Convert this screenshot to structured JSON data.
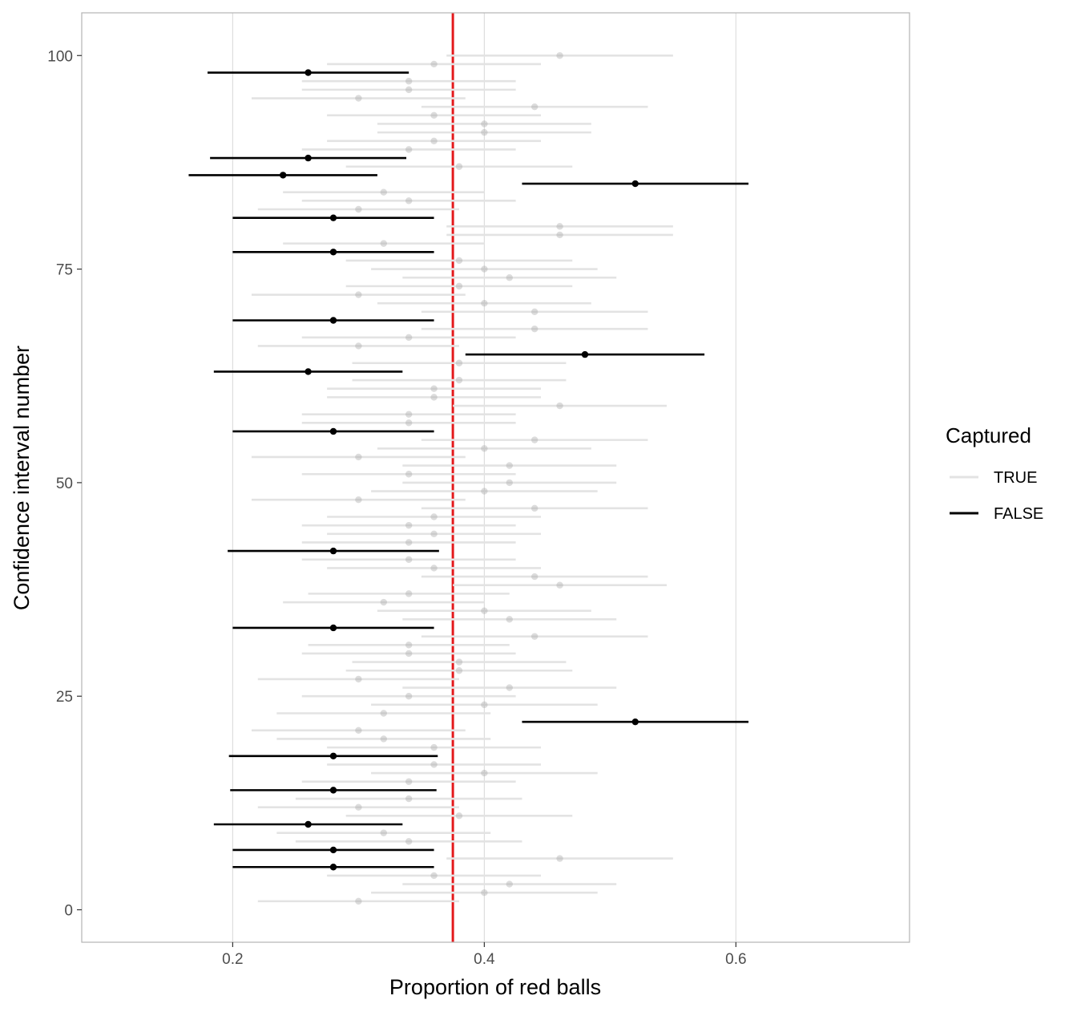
{
  "chart_data": {
    "type": "scatter",
    "xlabel": "Proportion of red balls",
    "ylabel": "Confidence interval number",
    "xlim": [
      0.08,
      0.738
    ],
    "ylim": [
      -3.8,
      105
    ],
    "x_ticks": [
      {
        "value": 0.2,
        "label": "0.2"
      },
      {
        "value": 0.4,
        "label": "0.4"
      },
      {
        "value": 0.6,
        "label": "0.6"
      }
    ],
    "y_ticks": [
      {
        "value": 0,
        "label": "0"
      },
      {
        "value": 25,
        "label": "25"
      },
      {
        "value": 50,
        "label": "50"
      },
      {
        "value": 75,
        "label": "75"
      },
      {
        "value": 100,
        "label": "100"
      }
    ],
    "grid": true,
    "reference_line": {
      "x": 0.375,
      "color": "#e41a1c"
    },
    "legend": {
      "title": "Captured",
      "position": "right",
      "entries": [
        {
          "label": "TRUE",
          "color": "#e3e3e3"
        },
        {
          "label": "FALSE",
          "color": "#000000"
        }
      ]
    },
    "colors": {
      "captured": "#e3e3e3",
      "missed": "#000000",
      "reference": "#e41a1c"
    },
    "intervals": [
      {
        "id": 1,
        "estimate": 0.3,
        "lower": 0.22,
        "upper": 0.38,
        "captured": true
      },
      {
        "id": 2,
        "estimate": 0.4,
        "lower": 0.31,
        "upper": 0.49,
        "captured": true
      },
      {
        "id": 3,
        "estimate": 0.42,
        "lower": 0.335,
        "upper": 0.505,
        "captured": true
      },
      {
        "id": 4,
        "estimate": 0.36,
        "lower": 0.275,
        "upper": 0.445,
        "captured": true
      },
      {
        "id": 5,
        "estimate": 0.28,
        "lower": 0.2,
        "upper": 0.36,
        "captured": false
      },
      {
        "id": 6,
        "estimate": 0.46,
        "lower": 0.37,
        "upper": 0.55,
        "captured": true
      },
      {
        "id": 7,
        "estimate": 0.28,
        "lower": 0.2,
        "upper": 0.36,
        "captured": false
      },
      {
        "id": 8,
        "estimate": 0.34,
        "lower": 0.25,
        "upper": 0.43,
        "captured": true
      },
      {
        "id": 9,
        "estimate": 0.32,
        "lower": 0.235,
        "upper": 0.405,
        "captured": true
      },
      {
        "id": 10,
        "estimate": 0.26,
        "lower": 0.185,
        "upper": 0.335,
        "captured": false
      },
      {
        "id": 11,
        "estimate": 0.38,
        "lower": 0.29,
        "upper": 0.47,
        "captured": true
      },
      {
        "id": 12,
        "estimate": 0.3,
        "lower": 0.22,
        "upper": 0.38,
        "captured": true
      },
      {
        "id": 13,
        "estimate": 0.34,
        "lower": 0.25,
        "upper": 0.43,
        "captured": true
      },
      {
        "id": 14,
        "estimate": 0.28,
        "lower": 0.198,
        "upper": 0.362,
        "captured": false
      },
      {
        "id": 15,
        "estimate": 0.34,
        "lower": 0.255,
        "upper": 0.425,
        "captured": true
      },
      {
        "id": 16,
        "estimate": 0.4,
        "lower": 0.31,
        "upper": 0.49,
        "captured": true
      },
      {
        "id": 17,
        "estimate": 0.36,
        "lower": 0.275,
        "upper": 0.445,
        "captured": true
      },
      {
        "id": 18,
        "estimate": 0.28,
        "lower": 0.197,
        "upper": 0.363,
        "captured": false
      },
      {
        "id": 19,
        "estimate": 0.36,
        "lower": 0.275,
        "upper": 0.445,
        "captured": true
      },
      {
        "id": 20,
        "estimate": 0.32,
        "lower": 0.235,
        "upper": 0.405,
        "captured": true
      },
      {
        "id": 21,
        "estimate": 0.3,
        "lower": 0.215,
        "upper": 0.385,
        "captured": true
      },
      {
        "id": 22,
        "estimate": 0.52,
        "lower": 0.43,
        "upper": 0.61,
        "captured": false
      },
      {
        "id": 23,
        "estimate": 0.32,
        "lower": 0.235,
        "upper": 0.405,
        "captured": true
      },
      {
        "id": 24,
        "estimate": 0.4,
        "lower": 0.31,
        "upper": 0.49,
        "captured": true
      },
      {
        "id": 25,
        "estimate": 0.34,
        "lower": 0.255,
        "upper": 0.425,
        "captured": true
      },
      {
        "id": 26,
        "estimate": 0.42,
        "lower": 0.335,
        "upper": 0.505,
        "captured": true
      },
      {
        "id": 27,
        "estimate": 0.3,
        "lower": 0.22,
        "upper": 0.38,
        "captured": true
      },
      {
        "id": 28,
        "estimate": 0.38,
        "lower": 0.29,
        "upper": 0.47,
        "captured": true
      },
      {
        "id": 29,
        "estimate": 0.38,
        "lower": 0.295,
        "upper": 0.465,
        "captured": true
      },
      {
        "id": 30,
        "estimate": 0.34,
        "lower": 0.255,
        "upper": 0.425,
        "captured": true
      },
      {
        "id": 31,
        "estimate": 0.34,
        "lower": 0.26,
        "upper": 0.42,
        "captured": true
      },
      {
        "id": 32,
        "estimate": 0.44,
        "lower": 0.35,
        "upper": 0.53,
        "captured": true
      },
      {
        "id": 33,
        "estimate": 0.28,
        "lower": 0.2,
        "upper": 0.36,
        "captured": false
      },
      {
        "id": 34,
        "estimate": 0.42,
        "lower": 0.335,
        "upper": 0.505,
        "captured": true
      },
      {
        "id": 35,
        "estimate": 0.4,
        "lower": 0.315,
        "upper": 0.485,
        "captured": true
      },
      {
        "id": 36,
        "estimate": 0.32,
        "lower": 0.24,
        "upper": 0.4,
        "captured": true
      },
      {
        "id": 37,
        "estimate": 0.34,
        "lower": 0.26,
        "upper": 0.42,
        "captured": true
      },
      {
        "id": 38,
        "estimate": 0.46,
        "lower": 0.375,
        "upper": 0.545,
        "captured": true
      },
      {
        "id": 39,
        "estimate": 0.44,
        "lower": 0.35,
        "upper": 0.53,
        "captured": true
      },
      {
        "id": 40,
        "estimate": 0.36,
        "lower": 0.275,
        "upper": 0.445,
        "captured": true
      },
      {
        "id": 41,
        "estimate": 0.34,
        "lower": 0.255,
        "upper": 0.425,
        "captured": true
      },
      {
        "id": 42,
        "estimate": 0.28,
        "lower": 0.196,
        "upper": 0.364,
        "captured": false
      },
      {
        "id": 43,
        "estimate": 0.34,
        "lower": 0.255,
        "upper": 0.425,
        "captured": true
      },
      {
        "id": 44,
        "estimate": 0.36,
        "lower": 0.275,
        "upper": 0.445,
        "captured": true
      },
      {
        "id": 45,
        "estimate": 0.34,
        "lower": 0.255,
        "upper": 0.425,
        "captured": true
      },
      {
        "id": 46,
        "estimate": 0.36,
        "lower": 0.275,
        "upper": 0.445,
        "captured": true
      },
      {
        "id": 47,
        "estimate": 0.44,
        "lower": 0.35,
        "upper": 0.53,
        "captured": true
      },
      {
        "id": 48,
        "estimate": 0.3,
        "lower": 0.215,
        "upper": 0.385,
        "captured": true
      },
      {
        "id": 49,
        "estimate": 0.4,
        "lower": 0.31,
        "upper": 0.49,
        "captured": true
      },
      {
        "id": 50,
        "estimate": 0.42,
        "lower": 0.335,
        "upper": 0.505,
        "captured": true
      },
      {
        "id": 51,
        "estimate": 0.34,
        "lower": 0.255,
        "upper": 0.425,
        "captured": true
      },
      {
        "id": 52,
        "estimate": 0.42,
        "lower": 0.335,
        "upper": 0.505,
        "captured": true
      },
      {
        "id": 53,
        "estimate": 0.3,
        "lower": 0.215,
        "upper": 0.385,
        "captured": true
      },
      {
        "id": 54,
        "estimate": 0.4,
        "lower": 0.315,
        "upper": 0.485,
        "captured": true
      },
      {
        "id": 55,
        "estimate": 0.44,
        "lower": 0.35,
        "upper": 0.53,
        "captured": true
      },
      {
        "id": 56,
        "estimate": 0.28,
        "lower": 0.2,
        "upper": 0.36,
        "captured": false
      },
      {
        "id": 57,
        "estimate": 0.34,
        "lower": 0.255,
        "upper": 0.425,
        "captured": true
      },
      {
        "id": 58,
        "estimate": 0.34,
        "lower": 0.255,
        "upper": 0.425,
        "captured": true
      },
      {
        "id": 59,
        "estimate": 0.46,
        "lower": 0.375,
        "upper": 0.545,
        "captured": true
      },
      {
        "id": 60,
        "estimate": 0.36,
        "lower": 0.275,
        "upper": 0.445,
        "captured": true
      },
      {
        "id": 61,
        "estimate": 0.36,
        "lower": 0.275,
        "upper": 0.445,
        "captured": true
      },
      {
        "id": 62,
        "estimate": 0.38,
        "lower": 0.295,
        "upper": 0.465,
        "captured": true
      },
      {
        "id": 63,
        "estimate": 0.26,
        "lower": 0.185,
        "upper": 0.335,
        "captured": false
      },
      {
        "id": 64,
        "estimate": 0.38,
        "lower": 0.295,
        "upper": 0.465,
        "captured": true
      },
      {
        "id": 65,
        "estimate": 0.48,
        "lower": 0.385,
        "upper": 0.575,
        "captured": false
      },
      {
        "id": 66,
        "estimate": 0.3,
        "lower": 0.22,
        "upper": 0.38,
        "captured": true
      },
      {
        "id": 67,
        "estimate": 0.34,
        "lower": 0.255,
        "upper": 0.425,
        "captured": true
      },
      {
        "id": 68,
        "estimate": 0.44,
        "lower": 0.35,
        "upper": 0.53,
        "captured": true
      },
      {
        "id": 69,
        "estimate": 0.28,
        "lower": 0.2,
        "upper": 0.36,
        "captured": false
      },
      {
        "id": 70,
        "estimate": 0.44,
        "lower": 0.35,
        "upper": 0.53,
        "captured": true
      },
      {
        "id": 71,
        "estimate": 0.4,
        "lower": 0.315,
        "upper": 0.485,
        "captured": true
      },
      {
        "id": 72,
        "estimate": 0.3,
        "lower": 0.215,
        "upper": 0.385,
        "captured": true
      },
      {
        "id": 73,
        "estimate": 0.38,
        "lower": 0.29,
        "upper": 0.47,
        "captured": true
      },
      {
        "id": 74,
        "estimate": 0.42,
        "lower": 0.335,
        "upper": 0.505,
        "captured": true
      },
      {
        "id": 75,
        "estimate": 0.4,
        "lower": 0.31,
        "upper": 0.49,
        "captured": true
      },
      {
        "id": 76,
        "estimate": 0.38,
        "lower": 0.29,
        "upper": 0.47,
        "captured": true
      },
      {
        "id": 77,
        "estimate": 0.28,
        "lower": 0.2,
        "upper": 0.36,
        "captured": false
      },
      {
        "id": 78,
        "estimate": 0.32,
        "lower": 0.24,
        "upper": 0.4,
        "captured": true
      },
      {
        "id": 79,
        "estimate": 0.46,
        "lower": 0.37,
        "upper": 0.55,
        "captured": true
      },
      {
        "id": 80,
        "estimate": 0.46,
        "lower": 0.37,
        "upper": 0.55,
        "captured": true
      },
      {
        "id": 81,
        "estimate": 0.28,
        "lower": 0.2,
        "upper": 0.36,
        "captured": false
      },
      {
        "id": 82,
        "estimate": 0.3,
        "lower": 0.22,
        "upper": 0.38,
        "captured": true
      },
      {
        "id": 83,
        "estimate": 0.34,
        "lower": 0.255,
        "upper": 0.425,
        "captured": true
      },
      {
        "id": 84,
        "estimate": 0.32,
        "lower": 0.24,
        "upper": 0.4,
        "captured": true
      },
      {
        "id": 85,
        "estimate": 0.52,
        "lower": 0.43,
        "upper": 0.61,
        "captured": false
      },
      {
        "id": 86,
        "estimate": 0.24,
        "lower": 0.165,
        "upper": 0.315,
        "captured": false
      },
      {
        "id": 87,
        "estimate": 0.38,
        "lower": 0.29,
        "upper": 0.47,
        "captured": true
      },
      {
        "id": 88,
        "estimate": 0.26,
        "lower": 0.182,
        "upper": 0.338,
        "captured": false
      },
      {
        "id": 89,
        "estimate": 0.34,
        "lower": 0.255,
        "upper": 0.425,
        "captured": true
      },
      {
        "id": 90,
        "estimate": 0.36,
        "lower": 0.275,
        "upper": 0.445,
        "captured": true
      },
      {
        "id": 91,
        "estimate": 0.4,
        "lower": 0.315,
        "upper": 0.485,
        "captured": true
      },
      {
        "id": 92,
        "estimate": 0.4,
        "lower": 0.315,
        "upper": 0.485,
        "captured": true
      },
      {
        "id": 93,
        "estimate": 0.36,
        "lower": 0.275,
        "upper": 0.445,
        "captured": true
      },
      {
        "id": 94,
        "estimate": 0.44,
        "lower": 0.35,
        "upper": 0.53,
        "captured": true
      },
      {
        "id": 95,
        "estimate": 0.3,
        "lower": 0.215,
        "upper": 0.385,
        "captured": true
      },
      {
        "id": 96,
        "estimate": 0.34,
        "lower": 0.255,
        "upper": 0.425,
        "captured": true
      },
      {
        "id": 97,
        "estimate": 0.34,
        "lower": 0.255,
        "upper": 0.425,
        "captured": true
      },
      {
        "id": 98,
        "estimate": 0.26,
        "lower": 0.18,
        "upper": 0.34,
        "captured": false
      },
      {
        "id": 99,
        "estimate": 0.36,
        "lower": 0.275,
        "upper": 0.445,
        "captured": true
      },
      {
        "id": 100,
        "estimate": 0.46,
        "lower": 0.37,
        "upper": 0.55,
        "captured": true
      }
    ]
  }
}
